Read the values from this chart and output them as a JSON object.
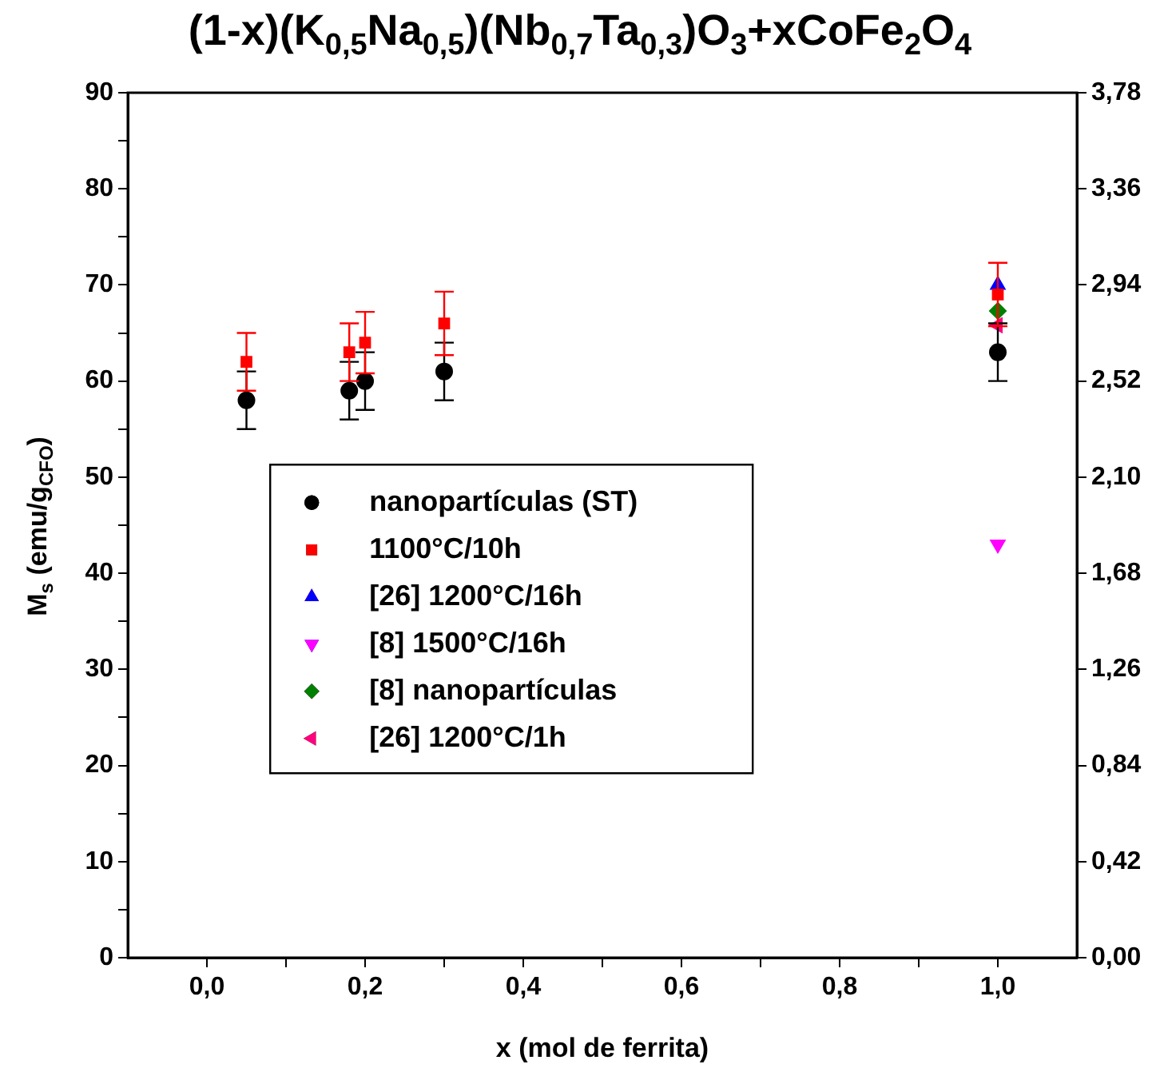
{
  "chart_data": {
    "type": "scatter",
    "title": "(1-x)(K$_{0,5}$Na$_{0,5}$)(Nb$_{0,7}$Ta$_{0,3}$)O$_{3}$+xCoFe$_{2}$O$_{4}$",
    "xlabel": "x (mol de ferrita)",
    "ylabel": "M$_{s}$ (emu/g$_{CFO}$)",
    "xlim": [
      -0.1,
      1.1
    ],
    "xticks": [
      {
        "value": 0,
        "label": "0,0"
      },
      {
        "value": 0.1,
        "label": null
      },
      {
        "value": 0.2,
        "label": "0,2"
      },
      {
        "value": 0.3,
        "label": null
      },
      {
        "value": 0.4,
        "label": "0,4"
      },
      {
        "value": 0.5,
        "label": null
      },
      {
        "value": 0.6,
        "label": "0,6"
      },
      {
        "value": 0.7,
        "label": null
      },
      {
        "value": 0.8,
        "label": "0,8"
      },
      {
        "value": 0.9,
        "label": null
      },
      {
        "value": 1.0,
        "label": "1,0"
      }
    ],
    "ylim": [
      0,
      90
    ],
    "yticks": [
      0,
      {
        "value": 5,
        "label": null
      },
      10,
      {
        "value": 15,
        "label": null
      },
      20,
      {
        "value": 25,
        "label": null
      },
      30,
      {
        "value": 35,
        "label": null
      },
      40,
      {
        "value": 45,
        "label": null
      },
      50,
      {
        "value": 55,
        "label": null
      },
      60,
      {
        "value": 65,
        "label": null
      },
      70,
      {
        "value": 75,
        "label": null
      },
      80,
      {
        "value": 85,
        "label": null
      },
      90
    ],
    "y2lim": [
      0,
      3.78
    ],
    "y2ticks": [
      {
        "value": 0,
        "label": "0,00"
      },
      {
        "value": 0.42,
        "label": "0,42"
      },
      {
        "value": 0.84,
        "label": "0,84"
      },
      {
        "value": 1.26,
        "label": "1,26"
      },
      {
        "value": 1.68,
        "label": "1,68"
      },
      {
        "value": 2.1,
        "label": "2,10"
      },
      {
        "value": 2.52,
        "label": "2,52"
      },
      {
        "value": 2.94,
        "label": "2,94"
      },
      {
        "value": 3.36,
        "label": "3,36"
      },
      {
        "value": 3.78,
        "label": "3,78"
      }
    ],
    "grid": false,
    "legend": "center",
    "series": [
      {
        "name": "nanopartículas (ST)",
        "color": "#000000",
        "marker": "circle",
        "x": [
          0.05,
          0.18,
          0.2,
          0.3,
          1.0
        ],
        "values": [
          58,
          59,
          60,
          61,
          63
        ],
        "errors": [
          3,
          3,
          3,
          3,
          3
        ]
      },
      {
        "name": "1100°C/10h",
        "color": "#ff0000",
        "marker": "square",
        "x": [
          0.05,
          0.18,
          0.2,
          0.3,
          1.0
        ],
        "values": [
          62,
          63,
          64,
          66,
          69
        ],
        "errors": [
          3,
          3,
          3.2,
          3.3,
          3.3
        ]
      },
      {
        "name": "[26] 1200°C/16h",
        "color": "#0000ff",
        "marker": "triangle",
        "x": [
          1.0
        ],
        "values": [
          70
        ]
      },
      {
        "name": "[8] 1500°C/16h",
        "color": "#ff00ff",
        "marker": "triangle-down",
        "x": [
          1.0
        ],
        "values": [
          43
        ]
      },
      {
        "name": "[8] nanopartículas",
        "color": "#008000",
        "marker": "diamond",
        "x": [
          1.0
        ],
        "values": [
          67.3
        ]
      },
      {
        "name": "[26] 1200°C/1h",
        "color": "#ff0080",
        "marker": "triangle-left",
        "x": [
          1.0
        ],
        "values": [
          65.8
        ]
      }
    ]
  }
}
